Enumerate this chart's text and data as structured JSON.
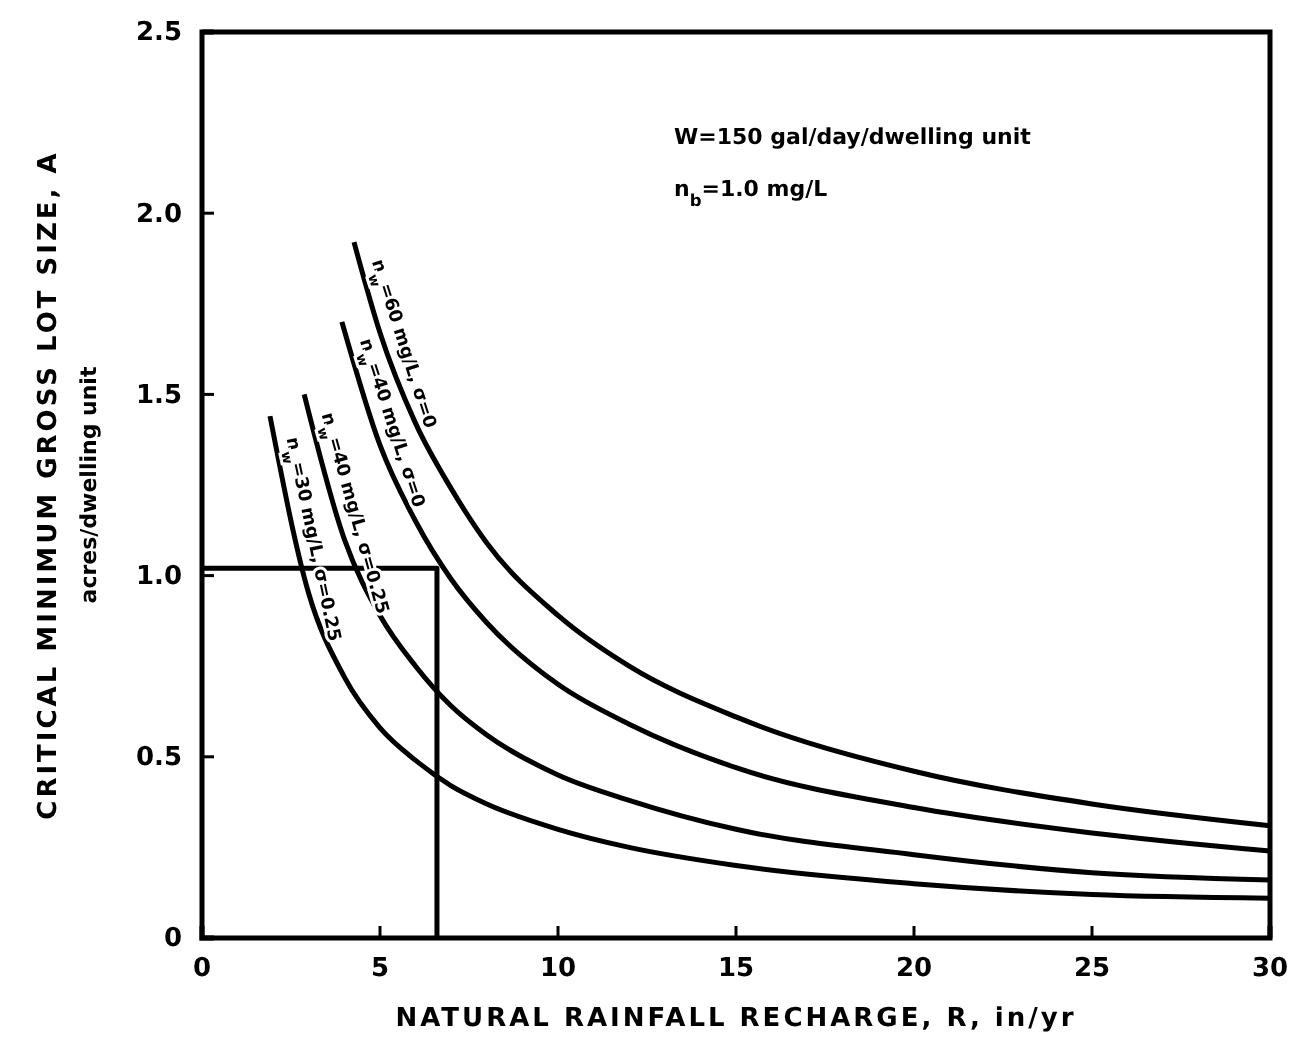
{
  "chart_data": {
    "type": "line",
    "xlabel": "NATURAL RAINFALL RECHARGE, R, in/yr",
    "ylabel": "CRITICAL MINIMUM GROSS LOT SIZE, A\nacres/dwelling unit",
    "xlim": [
      0,
      30
    ],
    "ylim": [
      0,
      2.5
    ],
    "xticks": [
      0,
      5,
      10,
      15,
      20,
      25,
      30
    ],
    "yticks": [
      0,
      {
        "value": 0.5,
        "label": "0.5"
      },
      {
        "value": 1,
        "label": "1.0"
      },
      {
        "value": 1.5,
        "label": "1.5"
      },
      {
        "value": 2,
        "label": "2.0"
      },
      {
        "value": 2.5,
        "label": "2.5"
      }
    ],
    "grid": false,
    "legend": false,
    "marker": "none",
    "line_style": "solid",
    "annotations": [
      "W=150 gal/day/dwelling unit",
      "n$_{b}$=1.0 mg/L"
    ],
    "series": [
      {
        "name": "n$_{w}$=60 mg/L, σ=0",
        "color": "#000000",
        "x": [
          4.27,
          5,
          6,
          7,
          8,
          10,
          12,
          15,
          20,
          25,
          30
        ],
        "values": [
          1.92,
          1.67,
          1.42,
          1.24,
          1.09,
          0.89,
          0.75,
          0.61,
          0.46,
          0.37,
          0.31
        ]
      },
      {
        "name": "n$_{w}$=40 mg/L, σ=0",
        "color": "#000000",
        "x": [
          3.93,
          5,
          6,
          7,
          8,
          10,
          12,
          15,
          20,
          25,
          30
        ],
        "values": [
          1.7,
          1.36,
          1.15,
          0.99,
          0.87,
          0.7,
          0.59,
          0.47,
          0.36,
          0.29,
          0.24
        ]
      },
      {
        "name": "n$_{w}$=40 mg/L, σ=0.25",
        "color": "#000000",
        "x": [
          2.87,
          4,
          5,
          6,
          7,
          8,
          10,
          12,
          15,
          20,
          25,
          30
        ],
        "values": [
          1.5,
          1.1,
          0.89,
          0.75,
          0.64,
          0.56,
          0.45,
          0.38,
          0.3,
          0.23,
          0.18,
          0.16
        ]
      },
      {
        "name": "n$_{w}$=30 mg/L, σ=0.25",
        "color": "#000000",
        "x": [
          1.91,
          3,
          4,
          5,
          6,
          7,
          8,
          10,
          12,
          15,
          20,
          25,
          30
        ],
        "values": [
          1.44,
          0.95,
          0.72,
          0.58,
          0.49,
          0.42,
          0.37,
          0.3,
          0.25,
          0.2,
          0.15,
          0.12,
          0.11
        ]
      },
      {
        "color": "#000000",
        "x": [
          0,
          6.6,
          6.6
        ],
        "values": [
          1.02,
          1.02,
          0
        ]
      }
    ]
  }
}
